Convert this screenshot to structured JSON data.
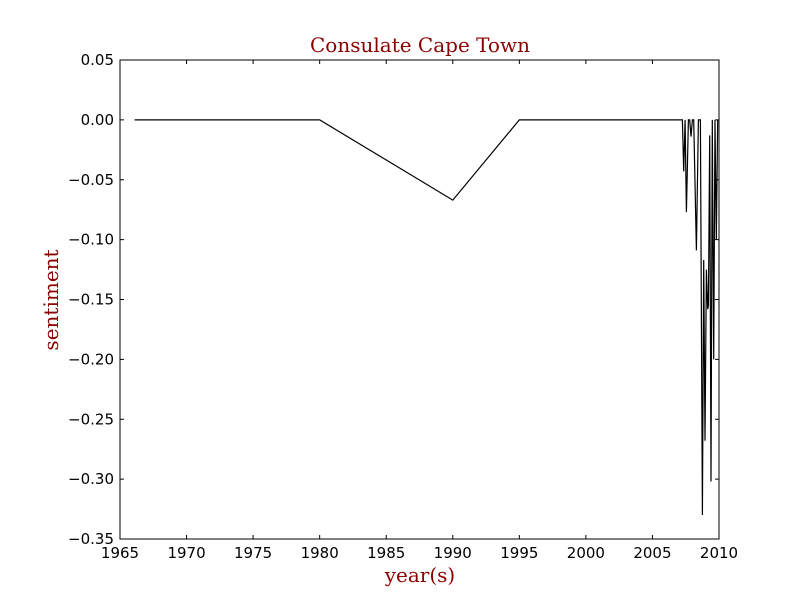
{
  "chart_data": {
    "type": "line",
    "title": "Consulate Cape Town",
    "xlabel": "year(s)",
    "ylabel": "sentiment",
    "xlim": [
      1965,
      2010
    ],
    "ylim": [
      -0.35,
      0.05
    ],
    "xticks": [
      1965,
      1970,
      1975,
      1980,
      1985,
      1990,
      1995,
      2000,
      2005,
      2010
    ],
    "xtick_labels": [
      "1965",
      "1970",
      "1975",
      "1980",
      "1985",
      "1990",
      "1995",
      "2000",
      "2005",
      "2010"
    ],
    "yticks": [
      0.05,
      0.0,
      -0.05,
      -0.1,
      -0.15,
      -0.2,
      -0.25,
      -0.3,
      -0.35
    ],
    "ytick_labels": [
      "0.05",
      "0.00",
      "−0.05",
      "−0.10",
      "−0.15",
      "−0.20",
      "−0.25",
      "−0.30",
      "−0.35"
    ],
    "grid": false,
    "line_color": "#000000",
    "label_color": "#8b0000",
    "series": [
      {
        "x": [
          1966.1,
          1980.0,
          1990.0,
          1995.0,
          2007.1,
          2007.25,
          2007.35,
          2007.45,
          2007.55,
          2007.7,
          2007.8,
          2007.9,
          2008.0,
          2008.1,
          2008.3,
          2008.45,
          2008.6,
          2008.75,
          2008.85,
          2008.95,
          2009.05,
          2009.15,
          2009.2,
          2009.3,
          2009.4,
          2009.5,
          2009.6,
          2009.7,
          2009.8,
          2009.9
        ],
        "y": [
          0.0,
          0.0,
          -0.067,
          0.0,
          0.0,
          0.0,
          -0.043,
          0.0,
          -0.077,
          0.0,
          0.0,
          -0.014,
          0.0,
          0.0,
          -0.109,
          0.0,
          0.0,
          -0.33,
          -0.117,
          -0.268,
          -0.125,
          -0.158,
          -0.155,
          -0.013,
          -0.302,
          0.0,
          -0.2,
          0.0,
          -0.1,
          0.0
        ]
      }
    ]
  }
}
